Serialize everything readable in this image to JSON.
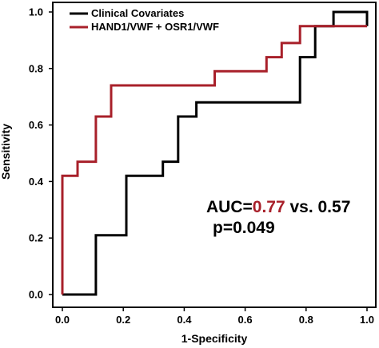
{
  "chart_data": {
    "type": "line",
    "xlabel": "1-Specificity",
    "ylabel": "Sensitivity",
    "xlim": [
      0,
      1
    ],
    "ylim": [
      0,
      1
    ],
    "x_ticks": [
      "0.0",
      "0.2",
      "0.4",
      "0.6",
      "0.8",
      "1.0"
    ],
    "y_ticks": [
      "0.0",
      "0.2",
      "0.4",
      "0.6",
      "0.8",
      "1.0"
    ],
    "legend_position": "top-left",
    "grid": false,
    "series": [
      {
        "name": "Clinical Covariates",
        "color": "#000000",
        "x": [
          0,
          0.11,
          0.11,
          0.21,
          0.21,
          0.33,
          0.33,
          0.38,
          0.38,
          0.44,
          0.44,
          0.78,
          0.78,
          0.83,
          0.83,
          0.89,
          0.89,
          1.0,
          1.0
        ],
        "y": [
          0,
          0,
          0.21,
          0.21,
          0.42,
          0.42,
          0.47,
          0.47,
          0.63,
          0.63,
          0.68,
          0.68,
          0.84,
          0.84,
          0.95,
          0.95,
          1.0,
          1.0,
          0.95
        ]
      },
      {
        "name": "HAND1/VWF + OSR1/VWF",
        "color": "#a8202a",
        "x": [
          0,
          0,
          0.05,
          0.05,
          0.11,
          0.11,
          0.16,
          0.16,
          0.5,
          0.5,
          0.67,
          0.67,
          0.72,
          0.72,
          0.78,
          0.78,
          0.89,
          0.89,
          1.0
        ],
        "y": [
          0,
          0.42,
          0.42,
          0.47,
          0.47,
          0.63,
          0.63,
          0.74,
          0.74,
          0.79,
          0.79,
          0.84,
          0.84,
          0.89,
          0.89,
          0.95,
          0.95,
          0.95,
          0.95
        ]
      }
    ],
    "annotation": {
      "auc_prefix": "AUC=",
      "auc_value": "0.77",
      "auc_suffix": " vs. 0.57",
      "p_text": "p=0.049",
      "highlight_color": "#a8202a"
    }
  }
}
